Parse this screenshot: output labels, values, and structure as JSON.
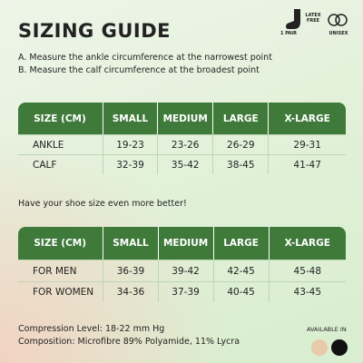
{
  "title": "SIZING GUIDE",
  "badges": [
    "1 PAIR",
    "LATEX FREE",
    "UNISEX"
  ],
  "instructions": [
    "A. Measure the ankle circumference at the narrowest point",
    "B. Measure the calf circumference at the broadest point"
  ],
  "table1": {
    "header": [
      "SIZE (CM)",
      "SMALL",
      "MEDIUM",
      "LARGE",
      "X-LARGE"
    ],
    "rows": [
      [
        "ANKLE",
        "19-23",
        "23-26",
        "26-29",
        "29-31"
      ],
      [
        "CALF",
        "32-39",
        "35-42",
        "38-45",
        "41-47"
      ]
    ]
  },
  "note": "Have your shoe size even more better!",
  "table2": {
    "header": [
      "SIZE (CM)",
      "SMALL",
      "MEDIUM",
      "LARGE",
      "X-LARGE"
    ],
    "rows": [
      [
        "FOR MEN",
        "36-39",
        "39-42",
        "42-45",
        "45-48"
      ],
      [
        "FOR WOMEN",
        "34-36",
        "37-39",
        "40-45",
        "43-45"
      ]
    ]
  },
  "footer": [
    "Compression Level: 18-22 mm Hg",
    "Composition: Microfibre 89% Polyamide, 11% Lycra"
  ],
  "available_label": "AVAILABLE IN"
}
